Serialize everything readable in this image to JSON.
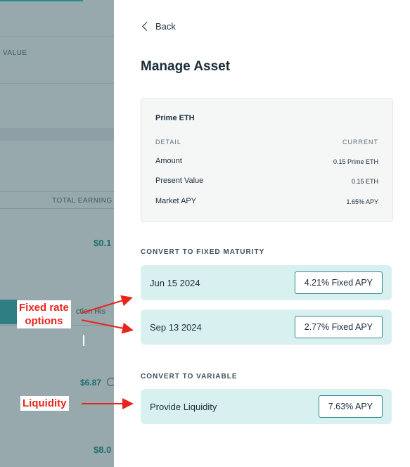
{
  "background": {
    "column_value": "VALUE",
    "column_total_earnings": "TOTAL EARNING",
    "amounts": [
      "$0.1",
      "$6.87",
      "$8.0"
    ],
    "tab_partial": "ction His"
  },
  "panel": {
    "back_label": "Back",
    "title": "Manage Asset",
    "asset_card": {
      "asset_name": "Prime ETH",
      "header_detail": "DETAIL",
      "header_current": "CURRENT",
      "rows": [
        {
          "label": "Amount",
          "value": "0.15 Prime ETH"
        },
        {
          "label": "Present Value",
          "value": "0.15 ETH"
        },
        {
          "label": "Market APY",
          "value": "1.65% APY"
        }
      ]
    },
    "fixed_section_title": "CONVERT TO FIXED MATURITY",
    "fixed_options": [
      {
        "date": "Jun 15 2024",
        "apy": "4.21% Fixed APY"
      },
      {
        "date": "Sep 13 2024",
        "apy": "2.77% Fixed APY"
      }
    ],
    "variable_section_title": "CONVERT TO VARIABLE",
    "variable_option": {
      "label": "Provide Liquidity",
      "apy": "7.63% APY"
    }
  },
  "annotations": {
    "fixed_rate_line1": "Fixed rate",
    "fixed_rate_line2": "options",
    "liquidity": "Liquidity",
    "color": "#e8251c"
  },
  "colors": {
    "accent": "#2a8a90",
    "option_bg": "#d9f0f1",
    "text": "#1b2d3a"
  }
}
